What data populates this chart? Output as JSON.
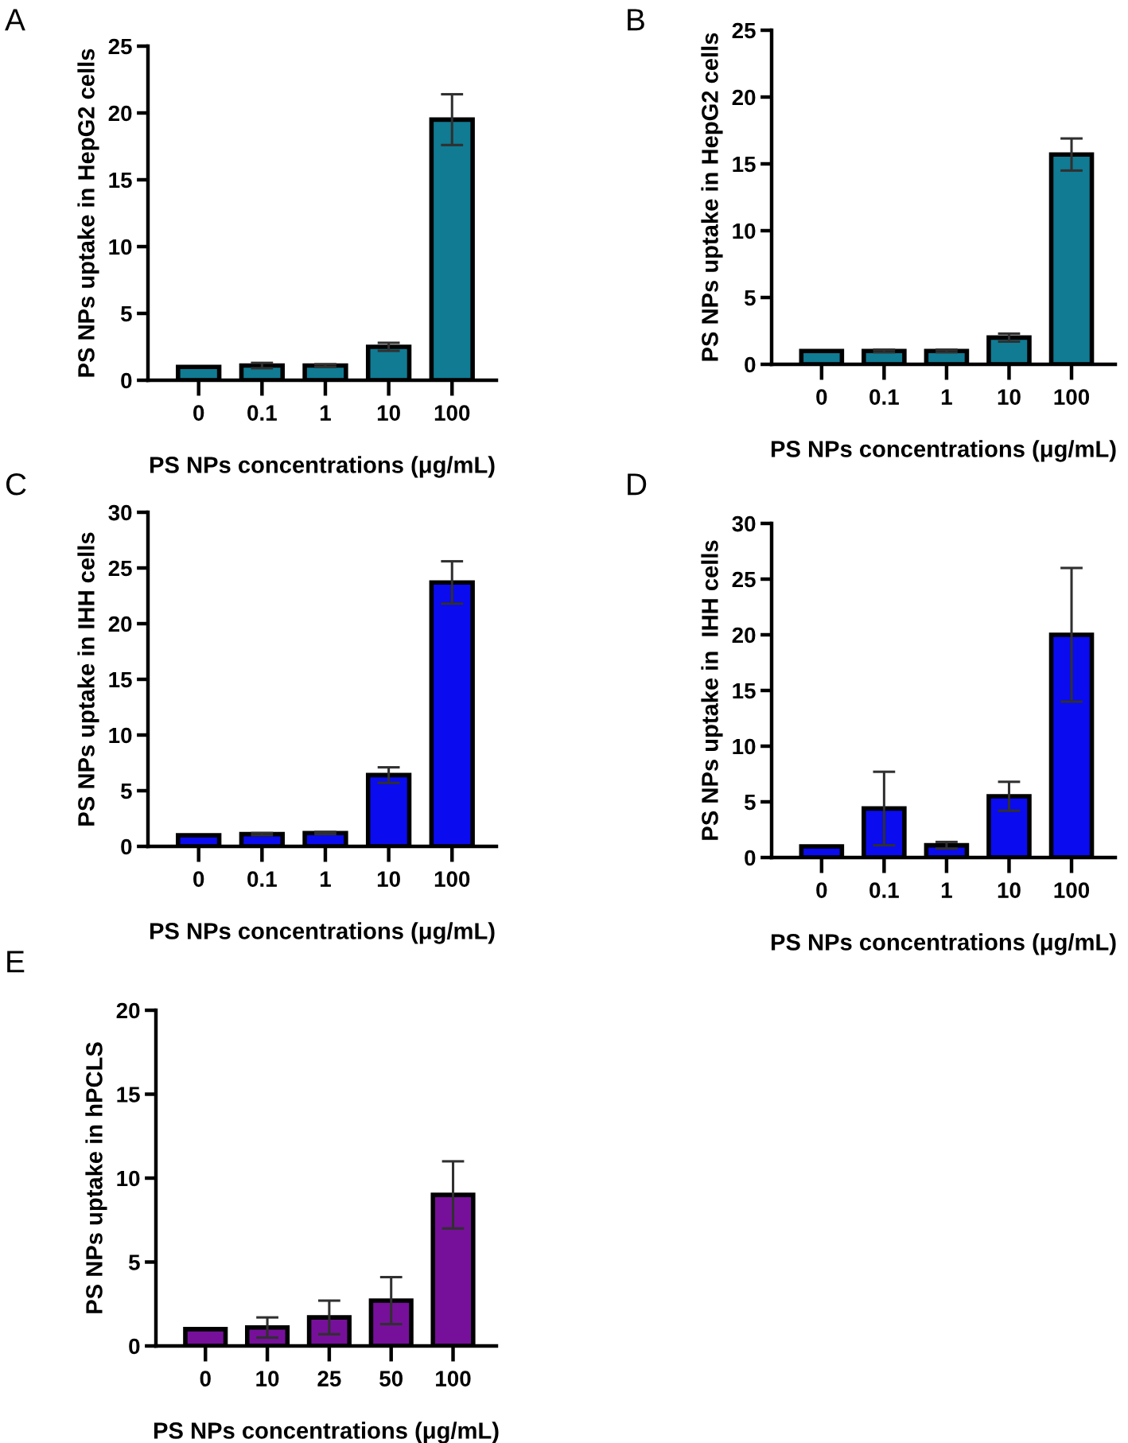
{
  "chart_data": [
    {
      "type": "bar",
      "title": "A",
      "categories": [
        "0",
        "0.1",
        "1",
        "10",
        "100"
      ],
      "values": [
        1,
        1.1,
        1.1,
        2.5,
        19.5
      ],
      "errors": [
        null,
        0.2,
        0.1,
        0.3,
        1.9
      ],
      "color": "#107b93",
      "xlabel": "PS NPs concentrations (μg/mL)",
      "ylabel": "PS NPs uptake in HepG2 cells",
      "ylim": [
        0,
        25
      ],
      "yticks": [
        0,
        5,
        10,
        15,
        20,
        25
      ]
    },
    {
      "type": "bar",
      "title": "B",
      "categories": [
        "0",
        "0.1",
        "1",
        "10",
        "100"
      ],
      "values": [
        1,
        1.0,
        1.0,
        2.0,
        15.7
      ],
      "errors": [
        null,
        0.1,
        0.1,
        0.3,
        1.2
      ],
      "color": "#107b93",
      "xlabel": "PS NPs concentrations (μg/mL)",
      "ylabel": "PS NPs uptake in HepG2 cells",
      "ylim": [
        0,
        25
      ],
      "yticks": [
        0,
        5,
        10,
        15,
        20,
        25
      ]
    },
    {
      "type": "bar",
      "title": "C",
      "categories": [
        "0",
        "0.1",
        "1",
        "10",
        "100"
      ],
      "values": [
        1,
        1.1,
        1.2,
        6.4,
        23.7
      ],
      "errors": [
        null,
        0.1,
        0.1,
        0.7,
        1.9
      ],
      "color": "#0b0bef",
      "xlabel": "PS NPs concentrations (μg/mL)",
      "ylabel": "PS NPs uptake in IHH cells",
      "ylim": [
        0,
        30
      ],
      "yticks": [
        0,
        5,
        10,
        15,
        20,
        25,
        30
      ]
    },
    {
      "type": "bar",
      "title": "D",
      "categories": [
        "0",
        "0.1",
        "1",
        "10",
        "100"
      ],
      "values": [
        1,
        4.4,
        1.1,
        5.5,
        20
      ],
      "errors": [
        null,
        3.3,
        0.3,
        1.3,
        6
      ],
      "color": "#0b0bef",
      "xlabel": "PS NPs concentrations (μg/mL)",
      "ylabel": "PS NPs uptake in  IHH cells",
      "ylim": [
        0,
        30
      ],
      "yticks": [
        0,
        5,
        10,
        15,
        20,
        25,
        30
      ]
    },
    {
      "type": "bar",
      "title": "E",
      "categories": [
        "0",
        "10",
        "25",
        "50",
        "100"
      ],
      "values": [
        1,
        1.1,
        1.7,
        2.7,
        9
      ],
      "errors": [
        null,
        0.6,
        1.0,
        1.4,
        2
      ],
      "color": "#76109a",
      "xlabel": "PS NPs concentrations (μg/mL)",
      "ylabel": "PS NPs uptake in hPCLS",
      "ylim": [
        0,
        20
      ],
      "yticks": [
        0,
        5,
        10,
        15,
        20
      ]
    }
  ]
}
